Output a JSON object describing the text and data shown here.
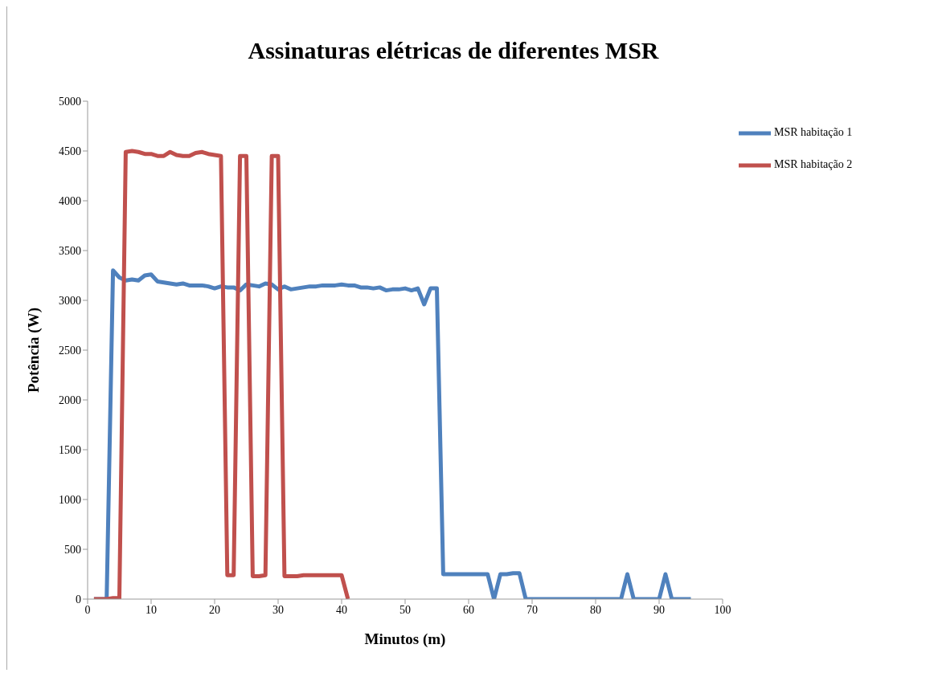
{
  "chart_data": {
    "type": "line",
    "title": "Assinaturas elétricas de diferentes MSR",
    "xlabel": "Minutos (m)",
    "ylabel": "Potência (W)",
    "xlim": [
      0,
      100
    ],
    "xticks": [
      0,
      10,
      20,
      30,
      40,
      50,
      60,
      70,
      80,
      90,
      100
    ],
    "ylim": [
      0,
      5000
    ],
    "yticks": [
      0,
      500,
      1000,
      1500,
      2000,
      2500,
      3000,
      3500,
      4000,
      4500,
      5000
    ],
    "legend": "right",
    "marker": "none",
    "line_style": "solid",
    "series": [
      {
        "name": "MSR habitação 1",
        "color": "#4f81bd",
        "x": [
          1,
          2,
          3,
          4,
          5,
          6,
          7,
          8,
          9,
          10,
          11,
          12,
          13,
          14,
          15,
          16,
          17,
          18,
          19,
          20,
          21,
          22,
          23,
          24,
          25,
          26,
          27,
          28,
          29,
          30,
          31,
          32,
          33,
          34,
          35,
          36,
          37,
          38,
          39,
          40,
          41,
          42,
          43,
          44,
          45,
          46,
          47,
          48,
          49,
          50,
          51,
          52,
          53,
          54,
          55,
          56,
          57,
          58,
          59,
          60,
          61,
          62,
          63,
          64,
          65,
          66,
          67,
          68,
          69,
          70,
          71,
          72,
          73,
          74,
          75,
          76,
          77,
          78,
          79,
          80,
          81,
          82,
          83,
          84,
          85,
          86,
          87,
          88,
          89,
          90,
          91,
          92,
          93,
          94,
          95
        ],
        "values": [
          0,
          0,
          0,
          3300,
          3230,
          3200,
          3210,
          3200,
          3250,
          3260,
          3190,
          3180,
          3170,
          3160,
          3170,
          3150,
          3150,
          3150,
          3140,
          3120,
          3140,
          3130,
          3130,
          3100,
          3160,
          3150,
          3140,
          3170,
          3160,
          3110,
          3140,
          3110,
          3120,
          3130,
          3140,
          3140,
          3150,
          3150,
          3150,
          3160,
          3150,
          3150,
          3130,
          3130,
          3120,
          3130,
          3100,
          3110,
          3110,
          3120,
          3100,
          3120,
          2960,
          3120,
          3120,
          250,
          250,
          250,
          250,
          250,
          250,
          250,
          250,
          0,
          250,
          250,
          260,
          260,
          0,
          0,
          0,
          0,
          0,
          0,
          0,
          0,
          0,
          0,
          0,
          0,
          0,
          0,
          0,
          0,
          250,
          0,
          0,
          0,
          0,
          0,
          250,
          0,
          0,
          0,
          0
        ]
      },
      {
        "name": "MSR habitação 2",
        "color": "#c0504d",
        "x": [
          1,
          2,
          3,
          4,
          5,
          6,
          7,
          8,
          9,
          10,
          11,
          12,
          13,
          14,
          15,
          16,
          17,
          18,
          19,
          20,
          21,
          22,
          23,
          24,
          25,
          26,
          27,
          28,
          29,
          30,
          31,
          32,
          33,
          34,
          35,
          36,
          37,
          38,
          39,
          40,
          41
        ],
        "values": [
          0,
          0,
          0,
          10,
          10,
          4490,
          4500,
          4490,
          4470,
          4470,
          4450,
          4450,
          4490,
          4460,
          4450,
          4450,
          4480,
          4490,
          4470,
          4460,
          4450,
          240,
          240,
          4450,
          4450,
          230,
          230,
          240,
          4450,
          4450,
          230,
          230,
          230,
          240,
          240,
          240,
          240,
          240,
          240,
          240,
          0
        ]
      }
    ]
  }
}
